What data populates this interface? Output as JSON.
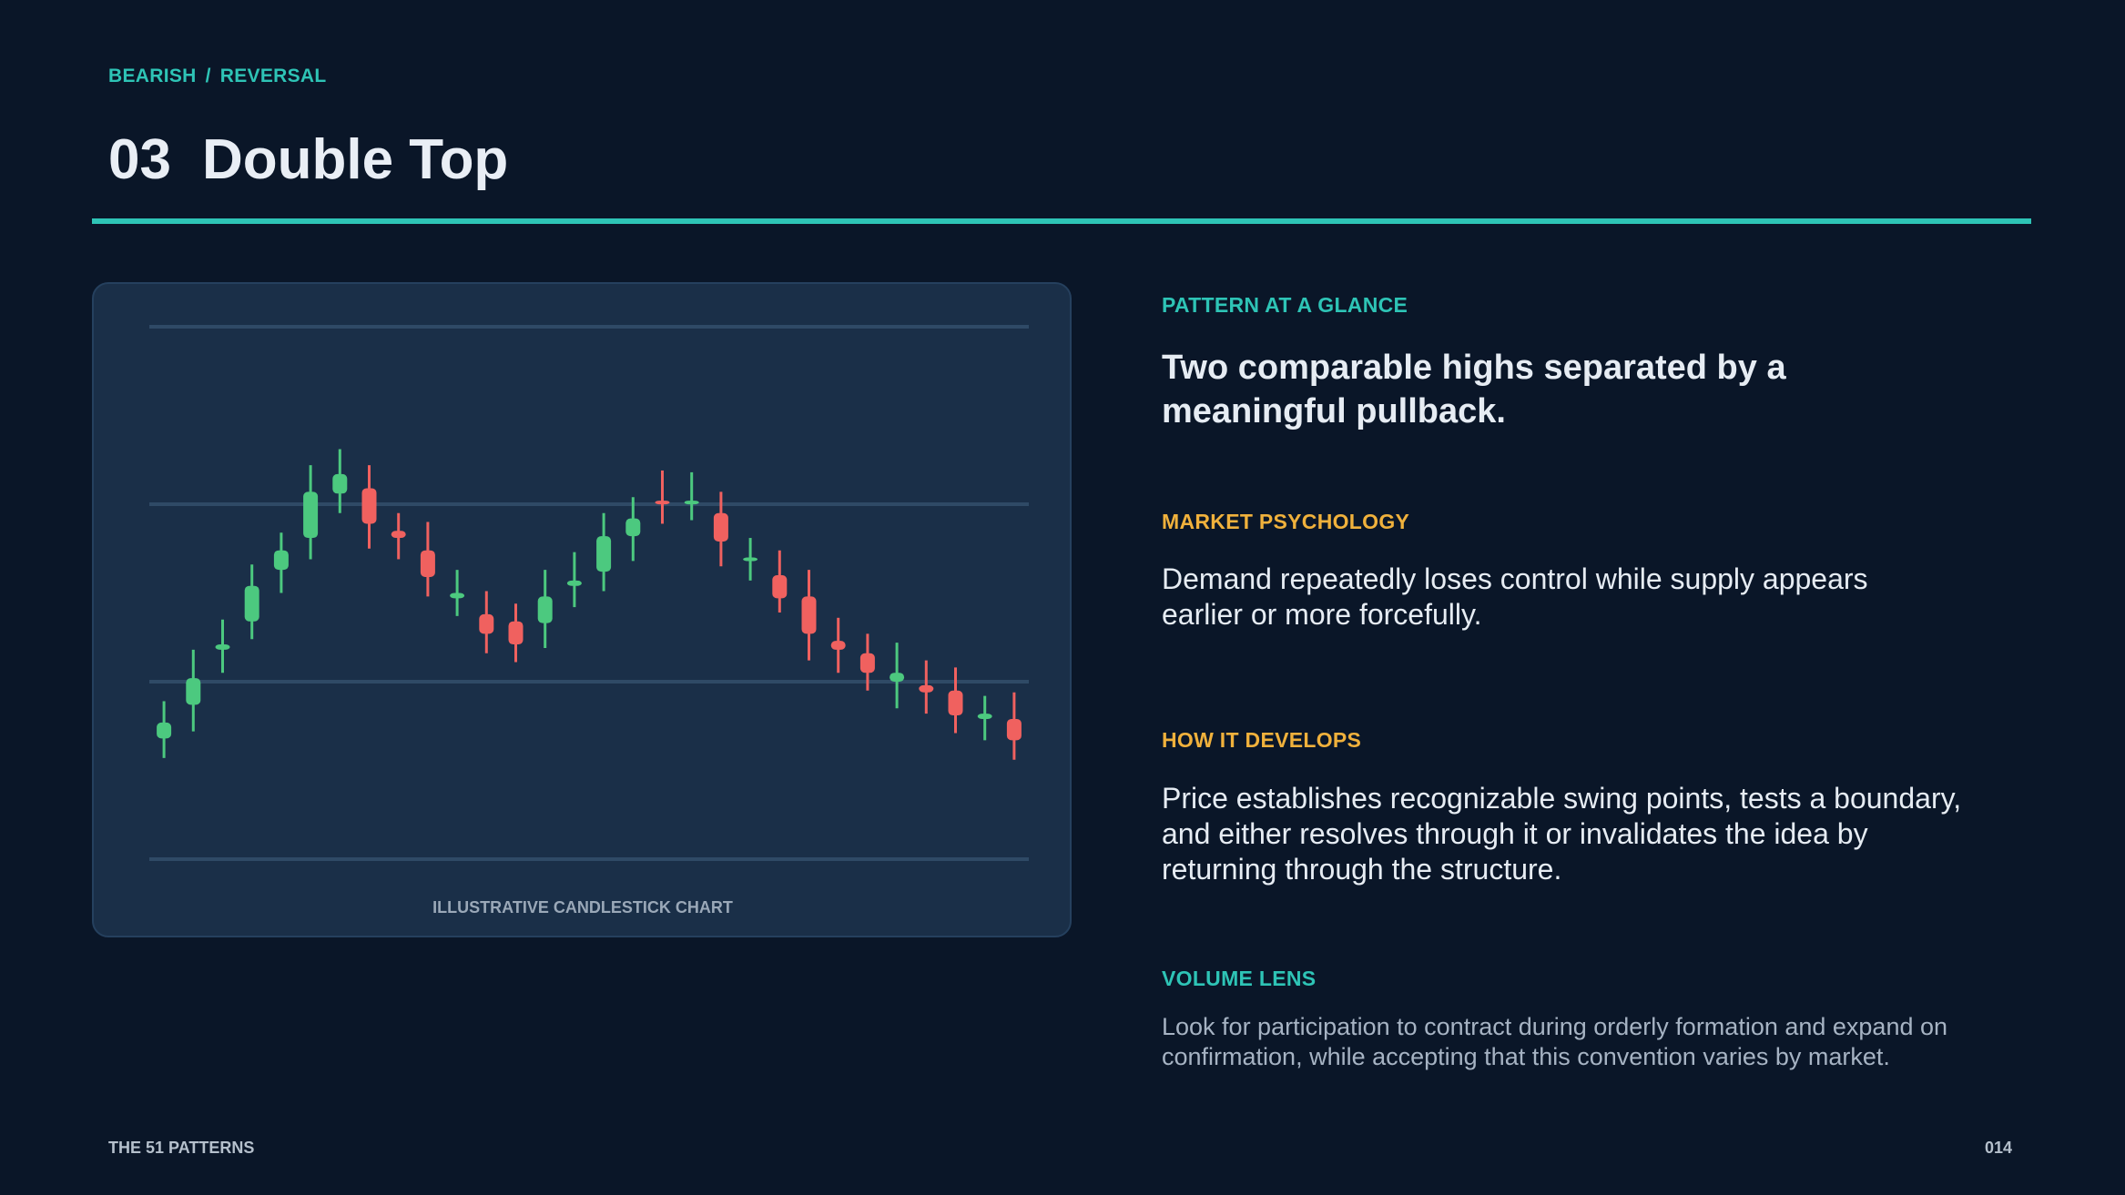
{
  "breadcrumb": {
    "category": "BEARISH",
    "separator": "/",
    "subtype": "REVERSAL"
  },
  "header": {
    "number": "03",
    "title": "Double Top"
  },
  "chart_data": {
    "type": "candlestick",
    "open": [
      0.68,
      0.87,
      1.18,
      1.34,
      1.63,
      1.81,
      2.06,
      2.09,
      1.85,
      1.74,
      1.47,
      1.38,
      1.34,
      1.33,
      1.54,
      1.62,
      1.82,
      2.02,
      2.0,
      1.95,
      1.69,
      1.6,
      1.48,
      1.23,
      1.16,
      1.0,
      0.98,
      0.95,
      0.79,
      0.79
    ],
    "high": [
      0.89,
      1.18,
      1.35,
      1.66,
      1.84,
      2.22,
      2.31,
      2.22,
      1.95,
      1.9,
      1.63,
      1.51,
      1.44,
      1.63,
      1.73,
      1.95,
      2.04,
      2.19,
      2.18,
      2.07,
      1.81,
      1.74,
      1.63,
      1.36,
      1.27,
      1.22,
      1.12,
      1.08,
      0.92,
      0.94
    ],
    "low": [
      0.57,
      0.72,
      1.05,
      1.24,
      1.5,
      1.69,
      1.95,
      1.75,
      1.69,
      1.48,
      1.37,
      1.16,
      1.11,
      1.19,
      1.42,
      1.51,
      1.68,
      1.89,
      1.91,
      1.65,
      1.57,
      1.39,
      1.12,
      1.05,
      0.95,
      0.85,
      0.82,
      0.71,
      0.67,
      0.56
    ],
    "close": [
      0.77,
      1.02,
      1.21,
      1.54,
      1.74,
      2.07,
      2.17,
      1.89,
      1.81,
      1.59,
      1.5,
      1.27,
      1.21,
      1.48,
      1.57,
      1.82,
      1.92,
      2.0,
      2.02,
      1.79,
      1.7,
      1.47,
      1.27,
      1.18,
      1.05,
      1.05,
      0.94,
      0.81,
      0.82,
      0.67
    ],
    "up_color": "#4cc97f",
    "down_color": "#f0615f",
    "ylim": [
      0,
      3
    ],
    "yticks": [
      0,
      1,
      2,
      3
    ],
    "grid": true,
    "caption": "ILLUSTRATIVE CANDLESTICK CHART"
  },
  "sections": [
    {
      "heading": "PATTERN AT A GLANCE",
      "color": "#2ec4b6",
      "text": "Two comparable highs separated by a meaningful pullback."
    },
    {
      "heading": "MARKET PSYCHOLOGY",
      "color": "#f0b13c",
      "text": "Demand repeatedly loses control while supply appears earlier or more forcefully."
    },
    {
      "heading": "HOW IT DEVELOPS",
      "color": "#f0b13c",
      "text": "Price establishes recognizable swing points, tests a boundary, and either resolves through it or invalidates the idea by returning through the structure."
    },
    {
      "heading": "VOLUME LENS",
      "color": "#2ec4b6",
      "text": "Look for participation to contract during orderly formation and expand on confirmation, while accepting that this convention varies by market."
    }
  ],
  "footer": {
    "left": "THE 51 PATTERNS",
    "page": "014"
  }
}
